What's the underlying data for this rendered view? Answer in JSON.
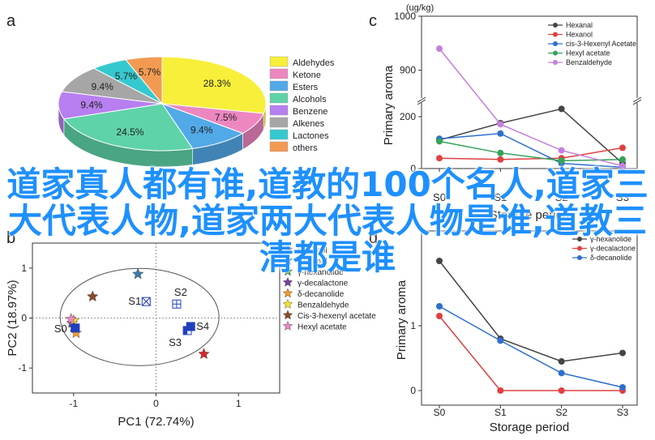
{
  "overlay_title": "道家真人都有谁,道教的100个名人,道家三大代表人物,道家两大代表人物是谁,道教三清都是谁",
  "chart_data": [
    {
      "panel": "a",
      "type": "pie",
      "slices": [
        {
          "label": "Aldehydes",
          "value": 28.3,
          "display": "28.3%",
          "color": "#f7ef3a"
        },
        {
          "label": "Ketone",
          "value": 7.5,
          "display": "7.5%",
          "color": "#ec87c0"
        },
        {
          "label": "Esters",
          "value": 9.4,
          "display": "9.4%",
          "color": "#52a9e8"
        },
        {
          "label": "Alcohols",
          "value": 24.5,
          "display": "24.5%",
          "color": "#5fd3a8"
        },
        {
          "label": "Benzene",
          "value": 9.4,
          "display": "9.4%",
          "color": "#b77ff0"
        },
        {
          "label": "Alkenes",
          "value": 9.4,
          "display": "9.4%",
          "color": "#a6a6a6"
        },
        {
          "label": "Lactones",
          "value": 5.7,
          "display": "5.7%",
          "color": "#35c9cf"
        },
        {
          "label": "others",
          "value": 5.7,
          "display": "5.7%",
          "color": "#f39a52"
        }
      ],
      "legend": [
        "Aldehydes",
        "Ketone",
        "Esters",
        "Alcohols",
        "Benzene",
        "Alkenes",
        "Lactones",
        "others"
      ]
    },
    {
      "panel": "b",
      "type": "scatter",
      "xlabel": "PC1 (72.74%)",
      "ylabel": "PC2 (18.97%)",
      "xlim": [
        -1.5,
        1.5
      ],
      "ylim": [
        -1.5,
        1.5
      ],
      "xticks": [
        "-1",
        "0",
        "1"
      ],
      "yticks": [
        "1",
        "0",
        "-1"
      ],
      "samples": [
        {
          "label": "S0",
          "x": -0.98,
          "y": -0.2,
          "marker": "square"
        },
        {
          "label": "S1",
          "x": -0.12,
          "y": 0.33,
          "marker": "square-x"
        },
        {
          "label": "S2",
          "x": 0.25,
          "y": 0.28,
          "marker": "square-plus"
        },
        {
          "label": "S3",
          "x": 0.38,
          "y": -0.25,
          "marker": "square-half"
        },
        {
          "label": "S4",
          "x": 0.42,
          "y": -0.17,
          "marker": "square-filled"
        }
      ],
      "loadings": [
        {
          "name": "Hexanol",
          "x": 0.58,
          "y": -0.72,
          "color": "#d62728"
        },
        {
          "name": "Hexanal",
          "x": -0.22,
          "y": 0.88,
          "color": "#3b7ba8"
        },
        {
          "name": "γ-hexanolide",
          "x": -1.0,
          "y": -0.18,
          "color": "#2ca02c"
        },
        {
          "name": "γ-decalactone",
          "x": -1.02,
          "y": -0.1,
          "color": "#7b3f9e"
        },
        {
          "name": "δ-decanolide",
          "x": -0.97,
          "y": -0.3,
          "color": "#f39a2a"
        },
        {
          "name": "Benzaldehyde",
          "x": -1.0,
          "y": -0.05,
          "color": "#f3e42a"
        },
        {
          "name": "Cis-3-hexenyl acetate",
          "x": -0.77,
          "y": 0.43,
          "color": "#8b4a2a"
        },
        {
          "name": "Hexyl acetate",
          "x": -1.03,
          "y": -0.02,
          "color": "#ec87c0"
        }
      ],
      "legend": [
        "Hexanol",
        "Hexanal",
        "γ-hexanolide",
        "γ-decalactone",
        "δ-decanolide",
        "Benzaldehyde",
        "Cis-3-hexenyl acetate",
        "Hexyl acetate"
      ]
    },
    {
      "panel": "c",
      "type": "line",
      "unit": "(ug/kg)",
      "xlabel": "Storage period",
      "ylabel": "Primary aroma",
      "categories": [
        "S0",
        "S1",
        "S2",
        "S3"
      ],
      "yticks": [
        "1000",
        "900",
        "200",
        "0"
      ],
      "series": [
        {
          "name": "Hexanal",
          "values": [
            110,
            175,
            230,
            20
          ],
          "color": "#444444"
        },
        {
          "name": "Hexanol",
          "values": [
            40,
            35,
            40,
            80
          ],
          "color": "#e04040"
        },
        {
          "name": "cis-3-Hexenyl Acetate",
          "values": [
            115,
            135,
            20,
            5
          ],
          "color": "#2f6fd0"
        },
        {
          "name": "Hexyl acetate",
          "values": [
            105,
            60,
            30,
            35
          ],
          "color": "#35a35a"
        },
        {
          "name": "Benzaldehyde",
          "values": [
            940,
            800,
            70,
            10
          ],
          "color": "#c47fe0"
        }
      ]
    },
    {
      "panel": "d",
      "type": "line",
      "xlabel": "Storage period",
      "ylabel": "Primary aroma",
      "categories": [
        "S0",
        "S1",
        "S2",
        "S3"
      ],
      "yticks": [
        "1",
        "0"
      ],
      "series": [
        {
          "name": "γ-hexanolide",
          "values": [
            2.0,
            0.8,
            0.45,
            0.58
          ],
          "color": "#444444"
        },
        {
          "name": "γ-decalactone",
          "values": [
            1.15,
            0.0,
            0.0,
            0.0
          ],
          "color": "#e04040"
        },
        {
          "name": "δ-decanolide",
          "values": [
            1.3,
            0.77,
            0.27,
            0.05
          ],
          "color": "#2f6fd0"
        }
      ]
    }
  ],
  "panel_labels": [
    "a",
    "b",
    "c",
    "d"
  ]
}
